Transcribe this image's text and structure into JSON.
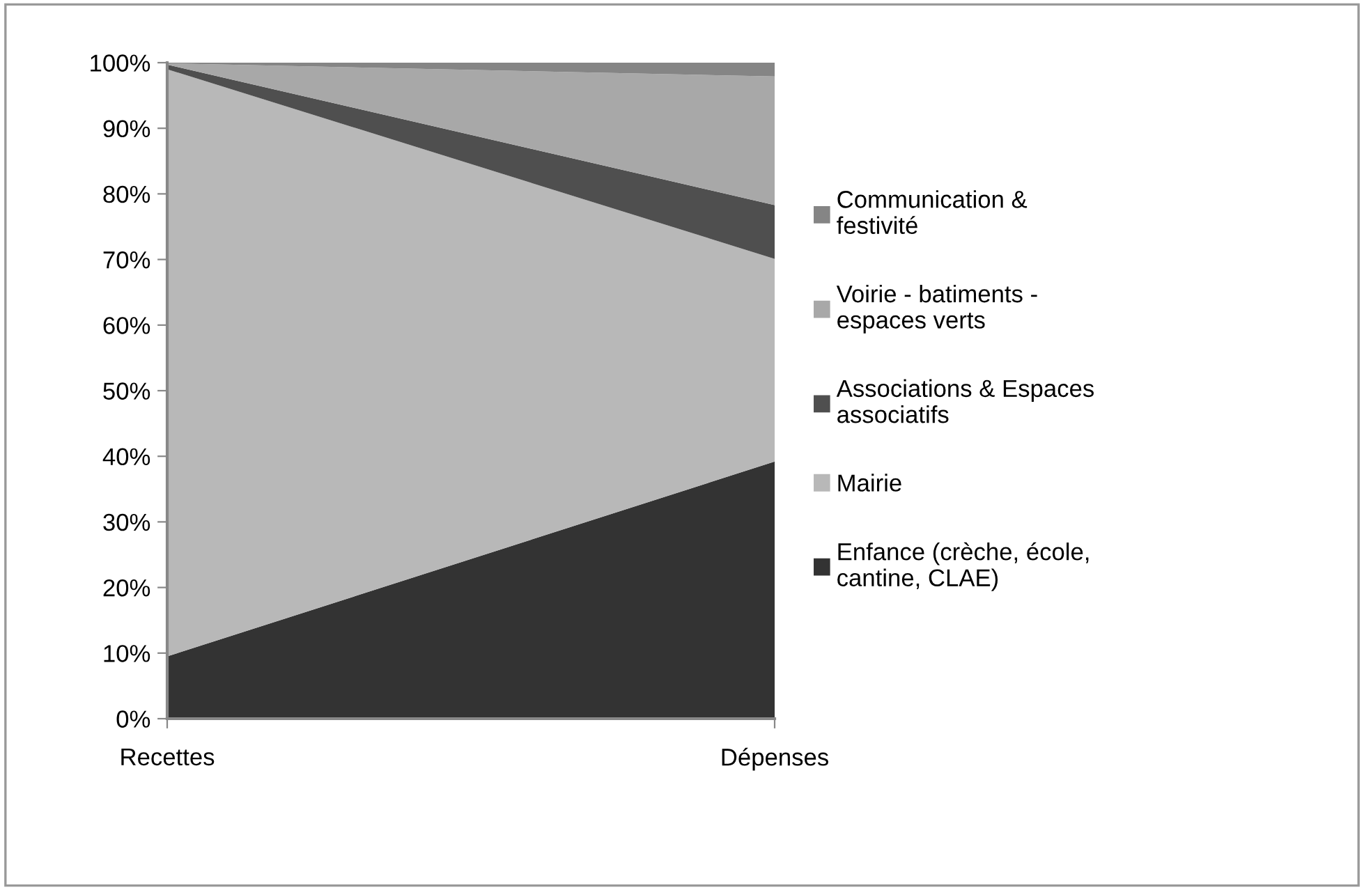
{
  "chart_data": {
    "type": "area",
    "stacked": true,
    "categories": [
      "Recettes",
      "Dépenses"
    ],
    "series": [
      {
        "name": "Enfance (crèche, école, cantine, CLAE)",
        "color": "#333333",
        "values": [
          9.5,
          39.2
        ]
      },
      {
        "name": "Mairie",
        "color": "#b8b8b8",
        "values": [
          89.5,
          30.9
        ]
      },
      {
        "name": "Associations & Espaces associatifs",
        "color": "#4f4f4f",
        "values": [
          0.7,
          8.2
        ]
      },
      {
        "name": "Voirie - batiments - espaces verts",
        "color": "#a8a8a8",
        "values": [
          0.2,
          19.6
        ]
      },
      {
        "name": "Communication & festivité",
        "color": "#858585",
        "values": [
          0.1,
          2.1
        ]
      }
    ],
    "ylim": [
      0,
      100
    ],
    "yticks": [
      {
        "value": 0,
        "label": "0%"
      },
      {
        "value": 10,
        "label": "10%"
      },
      {
        "value": 20,
        "label": "20%"
      },
      {
        "value": 30,
        "label": "30%"
      },
      {
        "value": 40,
        "label": "40%"
      },
      {
        "value": 50,
        "label": "50%"
      },
      {
        "value": 60,
        "label": "60%"
      },
      {
        "value": 70,
        "label": "70%"
      },
      {
        "value": 80,
        "label": "80%"
      },
      {
        "value": 90,
        "label": "90%"
      },
      {
        "value": 100,
        "label": "100%"
      }
    ],
    "grid": false,
    "legend": "right"
  }
}
